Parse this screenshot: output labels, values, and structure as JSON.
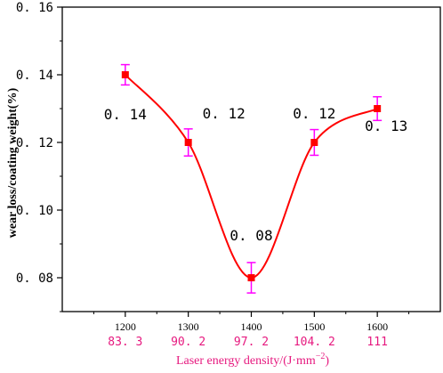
{
  "chart_data": {
    "type": "line",
    "x": [
      1200,
      1300,
      1400,
      1500,
      1600
    ],
    "x_tick_labels": [
      "1200",
      "1300",
      "1400",
      "1500",
      "1600"
    ],
    "secondary_x_labels": [
      "83. 3",
      "90. 2",
      "97. 2",
      "104. 2",
      "111"
    ],
    "values": [
      0.14,
      0.12,
      0.08,
      0.12,
      0.13
    ],
    "error": [
      0.003,
      0.004,
      0.0045,
      0.0038,
      0.0035
    ],
    "data_labels": [
      "0. 14",
      "0. 12",
      "0. 08",
      "0. 12",
      "0. 13"
    ],
    "y_tick_labels": [
      "0. 08",
      "0. 10",
      "0. 12",
      "0. 14",
      "0. 16"
    ],
    "y_tick_values": [
      0.08,
      0.1,
      0.12,
      0.14,
      0.16
    ],
    "ylim": [
      0.07,
      0.16
    ],
    "xlim": [
      1100,
      1700
    ],
    "ylabel": "wear loss/coating weight(%)",
    "xlabel_prefix": "Laser energy density/(J·mm",
    "xlabel_sup": "−2",
    "xlabel_suffix": ")",
    "colors": {
      "line": "#ff0000",
      "marker": "#ff0000",
      "errorbar": "#ff00ff",
      "secondary_axis": "#e6197f"
    }
  }
}
